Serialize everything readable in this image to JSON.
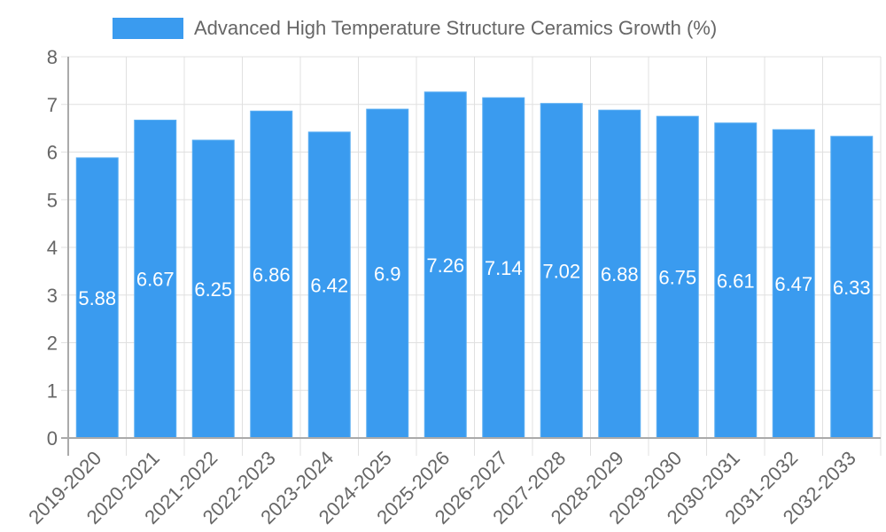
{
  "chart_data": {
    "type": "bar",
    "title": "",
    "legend": [
      {
        "label": "Advanced High Temperature Structure Ceramics Growth (%)",
        "color": "#3a9bef"
      }
    ],
    "legend_position": "top",
    "categories": [
      "2019-2020",
      "2020-2021",
      "2021-2022",
      "2022-2023",
      "2023-2024",
      "2024-2025",
      "2025-2026",
      "2026-2027",
      "2027-2028",
      "2028-2029",
      "2029-2030",
      "2030-2031",
      "2031-2032",
      "2032-2033"
    ],
    "series": [
      {
        "name": "Advanced High Temperature Structure Ceramics Growth (%)",
        "values": [
          5.88,
          6.67,
          6.25,
          6.86,
          6.42,
          6.9,
          7.26,
          7.14,
          7.02,
          6.88,
          6.75,
          6.61,
          6.47,
          6.33
        ],
        "color": "#3a9bef"
      }
    ],
    "data_labels": [
      "5.88",
      "6.67",
      "6.25",
      "6.86",
      "6.42",
      "6.9",
      "7.26",
      "7.14",
      "7.02",
      "6.88",
      "6.75",
      "6.61",
      "6.47",
      "6.33"
    ],
    "xlabel": "",
    "ylabel": "",
    "ylim": [
      0,
      8
    ],
    "yticks": [
      "0",
      "1",
      "2",
      "3",
      "4",
      "5",
      "6",
      "7",
      "8"
    ],
    "grid": true,
    "x_tick_rotation": -45
  },
  "legend": {
    "label": "Advanced High Temperature Structure Ceramics Growth (%)"
  }
}
